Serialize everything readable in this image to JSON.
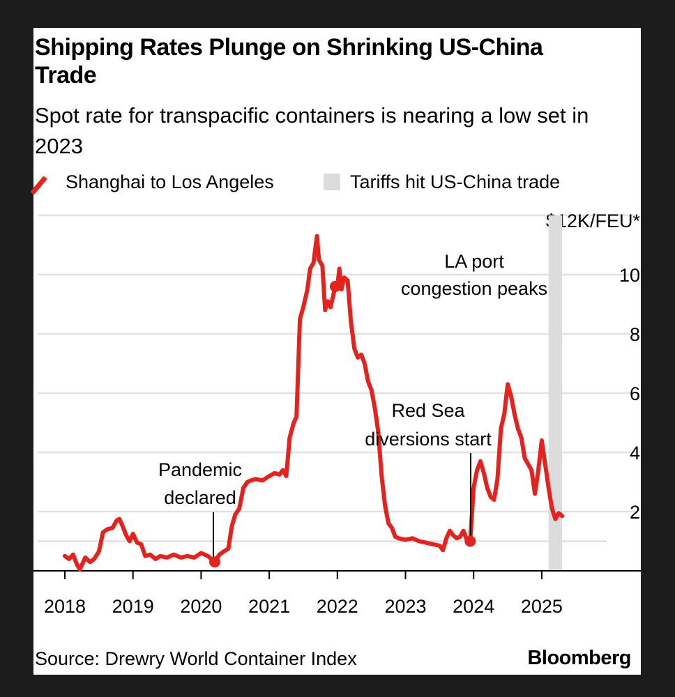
{
  "chart_data": {
    "type": "line",
    "title": "Shipping Rates Plunge on Shrinking US-China Trade",
    "subtitle": "Spot rate for transpacific containers is nearing a low set in 2023",
    "unit_label": "$12K/FEU*",
    "x_ticks": [
      "2018",
      "2019",
      "2020",
      "2021",
      "2022",
      "2023",
      "2024",
      "2025"
    ],
    "y_ticks": [
      "2",
      "4",
      "6",
      "8",
      "10"
    ],
    "ylim": [
      0,
      12
    ],
    "legend": {
      "series_label": "Shanghai to Los Angeles",
      "shade_label": "Tariffs hit US-China trade"
    },
    "shaded_region": {
      "from": 2025.1,
      "to": 2025.3
    },
    "annotations": [
      {
        "text_lines": [
          "Pandemic",
          "declared"
        ],
        "x": 2020.2,
        "y": 0.3
      },
      {
        "text_lines": [
          "LA port",
          "congestion peaks"
        ],
        "x": 2021.97,
        "y": 9.6
      },
      {
        "text_lines": [
          "Red Sea",
          "diversions start"
        ],
        "x": 2023.95,
        "y": 1.0
      }
    ],
    "series": [
      {
        "name": "Shanghai to Los Angeles",
        "color": "#e4231f",
        "points": [
          [
            2018.0,
            0.5
          ],
          [
            2018.06,
            0.4
          ],
          [
            2018.12,
            0.55
          ],
          [
            2018.18,
            0.2
          ],
          [
            2018.22,
            0.05
          ],
          [
            2018.3,
            0.45
          ],
          [
            2018.37,
            0.3
          ],
          [
            2018.43,
            0.4
          ],
          [
            2018.5,
            0.65
          ],
          [
            2018.56,
            1.3
          ],
          [
            2018.62,
            1.4
          ],
          [
            2018.7,
            1.45
          ],
          [
            2018.76,
            1.7
          ],
          [
            2018.8,
            1.75
          ],
          [
            2018.85,
            1.5
          ],
          [
            2018.9,
            1.2
          ],
          [
            2018.95,
            1.0
          ],
          [
            2019.0,
            1.25
          ],
          [
            2019.06,
            0.95
          ],
          [
            2019.12,
            0.9
          ],
          [
            2019.18,
            0.5
          ],
          [
            2019.25,
            0.55
          ],
          [
            2019.33,
            0.4
          ],
          [
            2019.4,
            0.5
          ],
          [
            2019.5,
            0.45
          ],
          [
            2019.6,
            0.55
          ],
          [
            2019.7,
            0.45
          ],
          [
            2019.8,
            0.5
          ],
          [
            2019.9,
            0.45
          ],
          [
            2020.0,
            0.6
          ],
          [
            2020.1,
            0.5
          ],
          [
            2020.2,
            0.3
          ],
          [
            2020.27,
            0.55
          ],
          [
            2020.33,
            0.65
          ],
          [
            2020.4,
            0.75
          ],
          [
            2020.45,
            1.5
          ],
          [
            2020.5,
            1.9
          ],
          [
            2020.56,
            2.1
          ],
          [
            2020.62,
            2.8
          ],
          [
            2020.68,
            3.0
          ],
          [
            2020.73,
            3.05
          ],
          [
            2020.8,
            3.1
          ],
          [
            2020.9,
            3.05
          ],
          [
            2021.0,
            3.2
          ],
          [
            2021.08,
            3.3
          ],
          [
            2021.15,
            3.25
          ],
          [
            2021.2,
            3.4
          ],
          [
            2021.25,
            3.2
          ],
          [
            2021.3,
            4.5
          ],
          [
            2021.36,
            5.0
          ],
          [
            2021.4,
            5.2
          ],
          [
            2021.45,
            8.5
          ],
          [
            2021.5,
            8.9
          ],
          [
            2021.56,
            9.5
          ],
          [
            2021.6,
            10.2
          ],
          [
            2021.65,
            10.4
          ],
          [
            2021.7,
            11.3
          ],
          [
            2021.73,
            10.5
          ],
          [
            2021.78,
            10.3
          ],
          [
            2021.82,
            8.8
          ],
          [
            2021.86,
            9.1
          ],
          [
            2021.9,
            8.9
          ],
          [
            2021.94,
            9.3
          ],
          [
            2021.97,
            9.6
          ],
          [
            2022.0,
            9.6
          ],
          [
            2022.03,
            10.2
          ],
          [
            2022.06,
            9.5
          ],
          [
            2022.1,
            9.9
          ],
          [
            2022.15,
            9.8
          ],
          [
            2022.2,
            8.4
          ],
          [
            2022.25,
            7.5
          ],
          [
            2022.3,
            7.2
          ],
          [
            2022.35,
            7.3
          ],
          [
            2022.4,
            7.0
          ],
          [
            2022.45,
            6.4
          ],
          [
            2022.5,
            6.1
          ],
          [
            2022.55,
            5.5
          ],
          [
            2022.6,
            4.7
          ],
          [
            2022.65,
            3.2
          ],
          [
            2022.7,
            2.2
          ],
          [
            2022.75,
            1.6
          ],
          [
            2022.8,
            1.45
          ],
          [
            2022.85,
            1.15
          ],
          [
            2022.9,
            1.1
          ],
          [
            2023.0,
            1.05
          ],
          [
            2023.1,
            1.1
          ],
          [
            2023.2,
            1.0
          ],
          [
            2023.3,
            0.95
          ],
          [
            2023.4,
            0.9
          ],
          [
            2023.5,
            0.85
          ],
          [
            2023.55,
            0.7
          ],
          [
            2023.6,
            1.1
          ],
          [
            2023.65,
            1.35
          ],
          [
            2023.7,
            1.2
          ],
          [
            2023.75,
            1.1
          ],
          [
            2023.8,
            1.15
          ],
          [
            2023.85,
            1.35
          ],
          [
            2023.9,
            1.05
          ],
          [
            2023.95,
            1.0
          ],
          [
            2024.0,
            2.8
          ],
          [
            2024.05,
            3.4
          ],
          [
            2024.1,
            3.7
          ],
          [
            2024.15,
            3.3
          ],
          [
            2024.2,
            2.8
          ],
          [
            2024.25,
            2.5
          ],
          [
            2024.3,
            2.4
          ],
          [
            2024.35,
            3.1
          ],
          [
            2024.4,
            4.8
          ],
          [
            2024.45,
            5.3
          ],
          [
            2024.5,
            6.3
          ],
          [
            2024.55,
            5.9
          ],
          [
            2024.6,
            5.3
          ],
          [
            2024.65,
            4.8
          ],
          [
            2024.7,
            4.5
          ],
          [
            2024.75,
            3.8
          ],
          [
            2024.8,
            3.6
          ],
          [
            2024.85,
            3.4
          ],
          [
            2024.9,
            2.6
          ],
          [
            2024.95,
            3.4
          ],
          [
            2025.0,
            4.4
          ],
          [
            2025.05,
            3.6
          ],
          [
            2025.1,
            2.8
          ],
          [
            2025.15,
            2.1
          ],
          [
            2025.2,
            1.75
          ],
          [
            2025.25,
            1.95
          ],
          [
            2025.3,
            1.85
          ]
        ]
      }
    ]
  },
  "footer": {
    "source": "Source: Drewry World Container Index",
    "brand": "Bloomberg"
  }
}
